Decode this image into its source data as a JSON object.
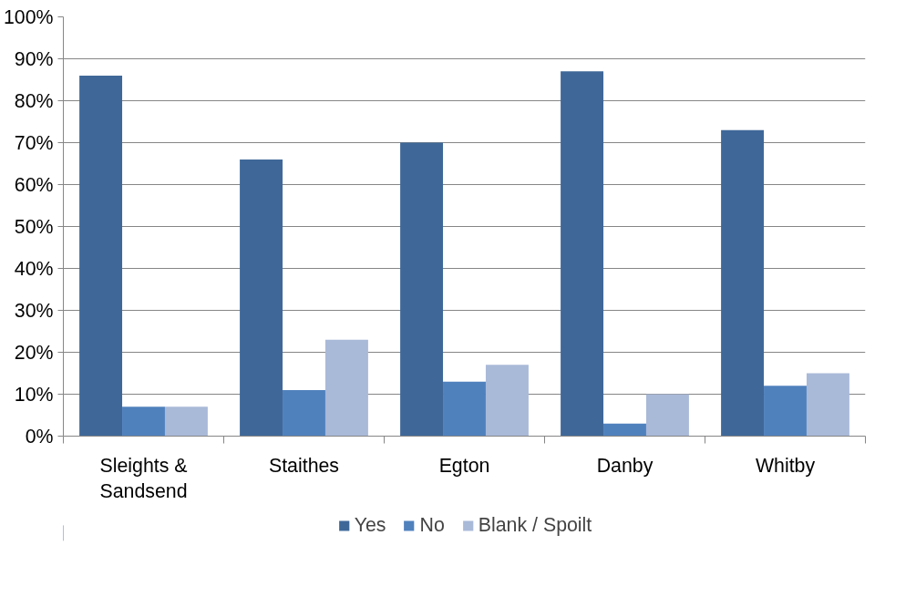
{
  "chart_data": {
    "type": "bar",
    "categories": [
      "Sleights & Sandsend",
      "Staithes",
      "Egton",
      "Danby",
      "Whitby"
    ],
    "series": [
      {
        "name": "Yes",
        "color": "#3f6899",
        "values": [
          86,
          66,
          70,
          87,
          73
        ]
      },
      {
        "name": "No",
        "color": "#4f81bd",
        "values": [
          7,
          11,
          13,
          3,
          12
        ]
      },
      {
        "name": "Blank / Spoilt",
        "color": "#a9b9d8",
        "values": [
          7,
          23,
          17,
          10,
          15
        ]
      }
    ],
    "ylim": [
      0,
      100
    ],
    "yticks": [
      {
        "value": 0,
        "label": "0%"
      },
      {
        "value": 10,
        "label": "10%"
      },
      {
        "value": 20,
        "label": "20%"
      },
      {
        "value": 30,
        "label": "30%"
      },
      {
        "value": 40,
        "label": "40%"
      },
      {
        "value": 50,
        "label": "50%"
      },
      {
        "value": 60,
        "label": "60%"
      },
      {
        "value": 70,
        "label": "70%"
      },
      {
        "value": 80,
        "label": "80%"
      },
      {
        "value": 90,
        "label": "90%"
      },
      {
        "value": 100,
        "label": "100%"
      }
    ],
    "grid": "y",
    "legend": "bottom"
  }
}
